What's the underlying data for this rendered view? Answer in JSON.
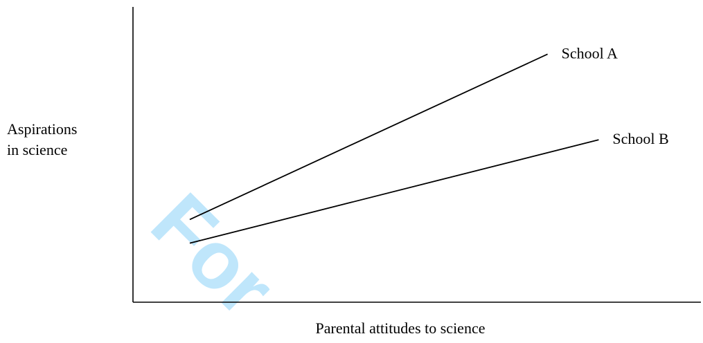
{
  "chart_data": {
    "type": "line",
    "title": "",
    "xlabel": "Parental attitudes to science",
    "ylabel": [
      "Aspirations",
      "in science"
    ],
    "xlim": [
      0,
      1
    ],
    "ylim": [
      0,
      1
    ],
    "grid": false,
    "series": [
      {
        "name": "School A",
        "x": [
          0.1,
          0.73
        ],
        "y": [
          0.28,
          0.84
        ],
        "color": "#000000"
      },
      {
        "name": "School B",
        "x": [
          0.1,
          0.82
        ],
        "y": [
          0.2,
          0.55
        ],
        "color": "#000000"
      }
    ]
  },
  "watermark": {
    "text": "For",
    "color": "#bfe6fb"
  }
}
